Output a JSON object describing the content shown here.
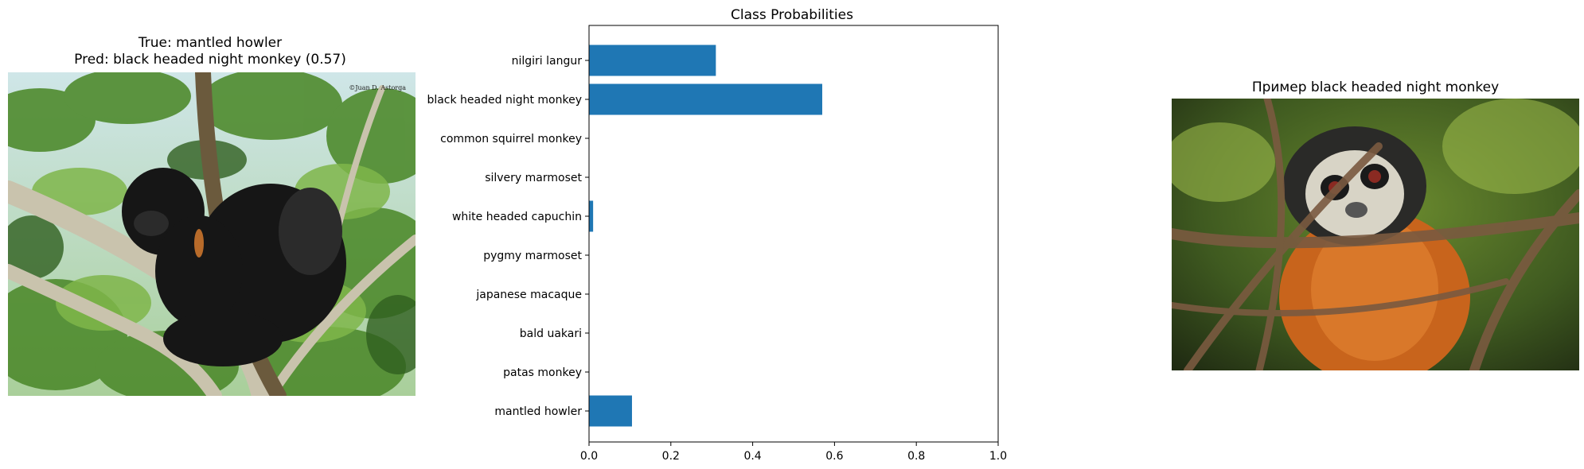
{
  "left_panel": {
    "title_line1": "True: mantled howler",
    "title_line2": "Pred: black headed night monkey (0.57)",
    "watermark": "©Juan D. Astorga"
  },
  "right_panel": {
    "title": "Пример black headed night monkey"
  },
  "colors": {
    "bar": "#1f77b4",
    "axis": "#000000"
  },
  "chart_data": {
    "type": "bar",
    "orientation": "horizontal",
    "title": "Class Probabilities",
    "categories": [
      "nilgiri langur",
      "black headed night monkey",
      "common squirrel monkey",
      "silvery marmoset",
      "white headed capuchin",
      "pygmy marmoset",
      "japanese macaque",
      "bald uakari",
      "patas monkey",
      "mantled howler"
    ],
    "values": [
      0.31,
      0.57,
      0.0,
      0.0,
      0.01,
      0.0,
      0.0,
      0.0,
      0.0,
      0.105
    ],
    "xlim": [
      0,
      1.0
    ],
    "xticks": [
      "0.0",
      "0.2",
      "0.4",
      "0.6",
      "0.8",
      "1.0"
    ],
    "xlabel": "",
    "ylabel": "",
    "grid": false
  }
}
